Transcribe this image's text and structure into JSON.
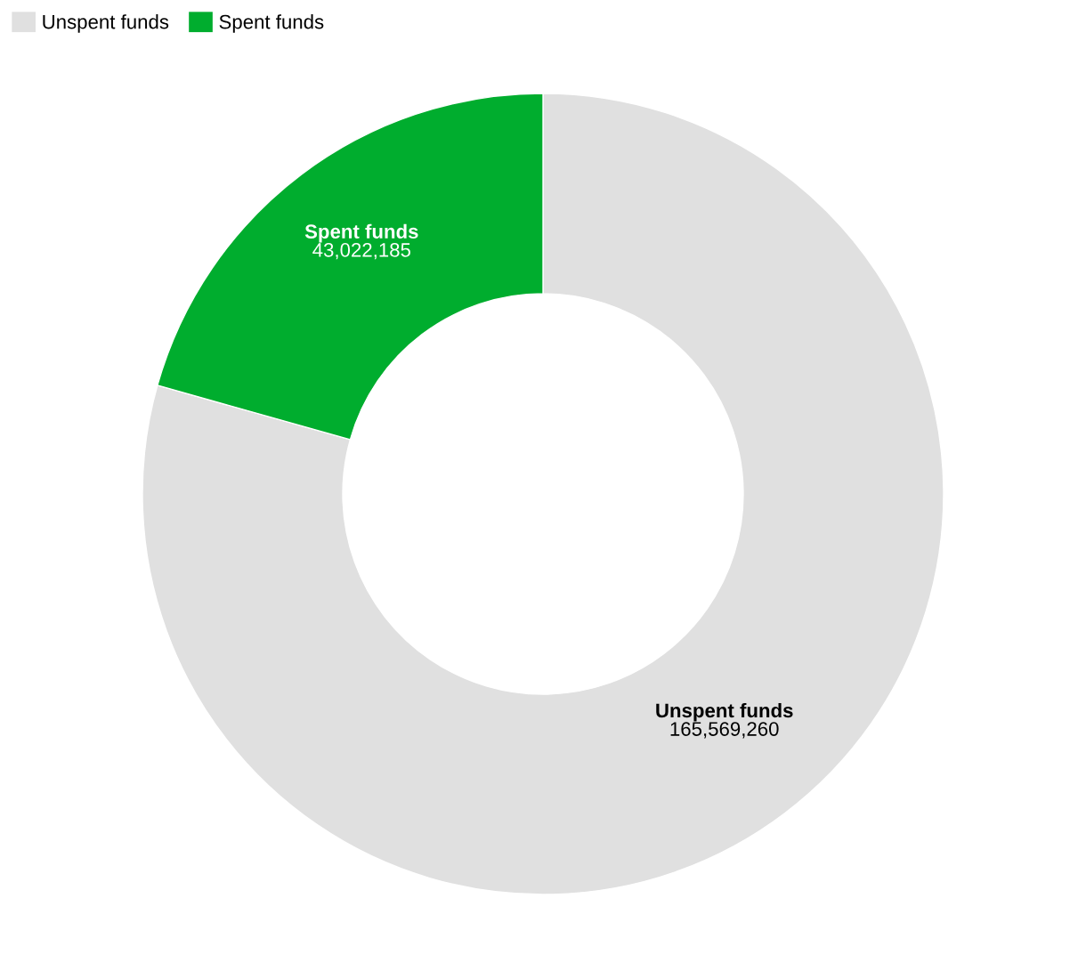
{
  "chart_data": {
    "type": "donut",
    "categories": [
      "Unspent funds",
      "Spent funds"
    ],
    "values": [
      165569260,
      43022185
    ],
    "value_labels": [
      "165,569,260",
      "43,022,185"
    ],
    "colors": [
      "#e0e0e0",
      "#00ad2e"
    ],
    "legend": "top left"
  }
}
